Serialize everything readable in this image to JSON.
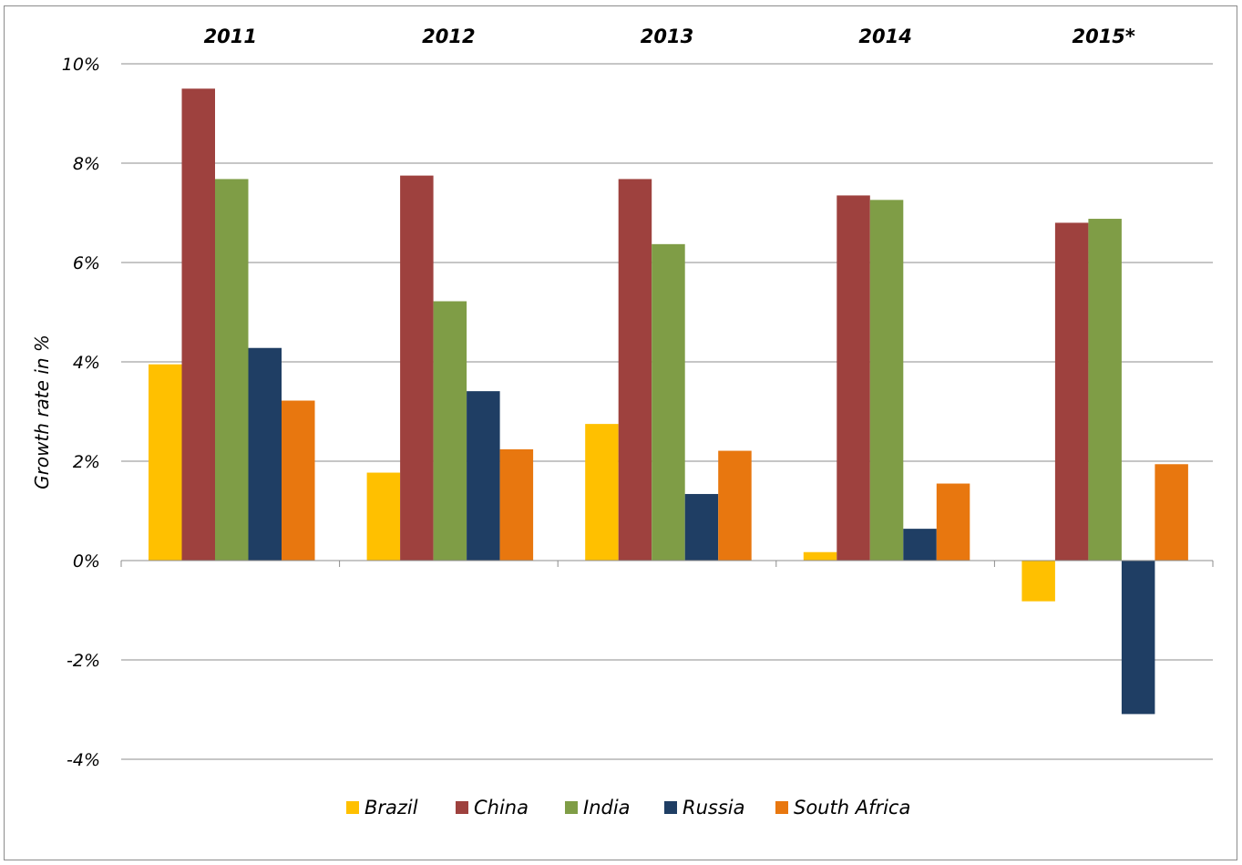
{
  "chart_data": {
    "type": "bar",
    "categories": [
      "2011",
      "2012",
      "2013",
      "2014",
      "2015*"
    ],
    "series": [
      {
        "name": "Brazil",
        "color": "#ffc000",
        "values": [
          3.95,
          1.77,
          2.75,
          0.17,
          -0.82
        ]
      },
      {
        "name": "China",
        "color": "#9e413e",
        "values": [
          9.5,
          7.75,
          7.68,
          7.35,
          6.8
        ]
      },
      {
        "name": "India",
        "color": "#7f9d46",
        "values": [
          7.68,
          5.22,
          6.37,
          7.26,
          6.88
        ]
      },
      {
        "name": "Russia",
        "color": "#1f3e64",
        "values": [
          4.28,
          3.41,
          1.34,
          0.64,
          -3.09
        ]
      },
      {
        "name": "South Africa",
        "color": "#e8770f",
        "values": [
          3.22,
          2.24,
          2.21,
          1.55,
          1.94
        ]
      }
    ],
    "ylabel": "Growth rate in %",
    "ylim": [
      -4,
      10
    ],
    "yticks": [
      10,
      8,
      6,
      4,
      2,
      0,
      -2,
      -4
    ],
    "ytick_labels": [
      "10%",
      "8%",
      "6%",
      "4%",
      "2%",
      "0%",
      "-2%",
      "-4%"
    ],
    "category_axis_position": "top",
    "grid": true,
    "legend_position": "bottom"
  }
}
